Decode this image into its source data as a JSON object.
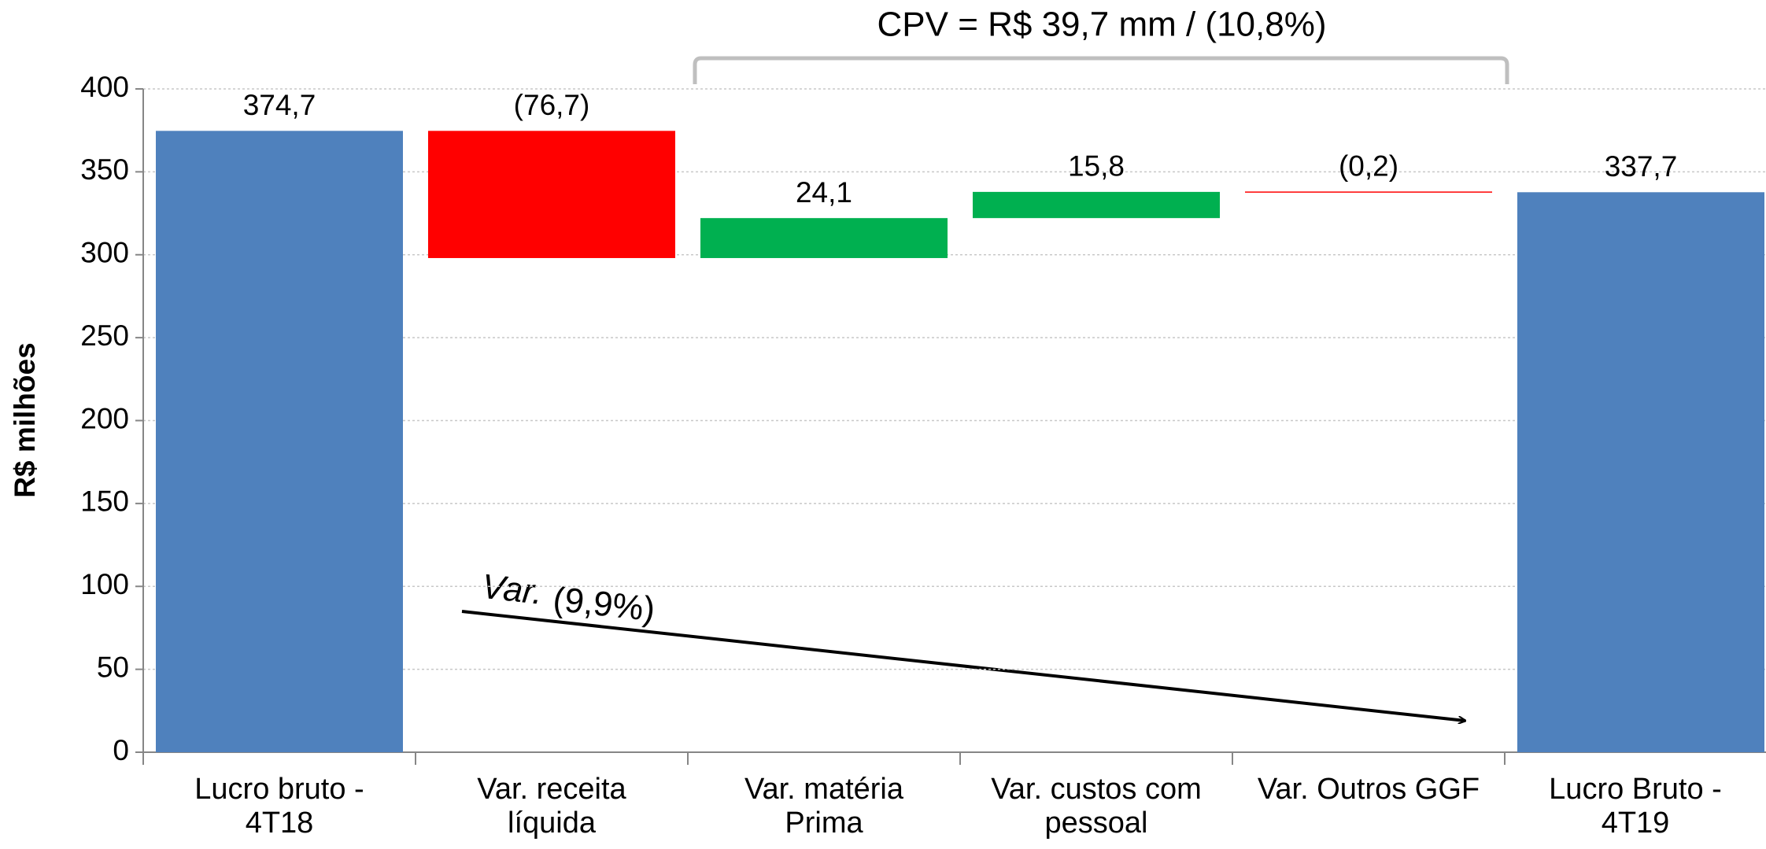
{
  "chart_data": {
    "type": "waterfall",
    "title": "CPV = R$ 39,7 mm / (10,8%)",
    "y_label": "R$ milhões",
    "annotations": [
      "Var.",
      "(9,9%)"
    ],
    "categories": [
      "Lucro bruto -\n4T18",
      "Var. receita\nlíquida",
      "Var. matéria\nPrima",
      "Var. custos com\npessoal",
      "Var. Outros GGF",
      "Lucro Bruto -\n4T19"
    ],
    "values": [
      374.7,
      -76.7,
      24.1,
      15.8,
      -0.2,
      337.7
    ],
    "value_labels": [
      "374,7",
      "(76,7)",
      "24,1",
      "15,8",
      "(0,2)",
      "337,7"
    ],
    "measure": [
      "total",
      "relative",
      "relative",
      "relative",
      "relative",
      "total"
    ],
    "colors": [
      "#4f81bd",
      "#ff0000",
      "#00b050",
      "#00b050",
      "#ff0000",
      "#4f81bd"
    ],
    "ylim": [
      0,
      400
    ],
    "yticks": [
      0,
      50,
      100,
      150,
      200,
      250,
      300,
      350,
      400
    ],
    "grid": true
  }
}
